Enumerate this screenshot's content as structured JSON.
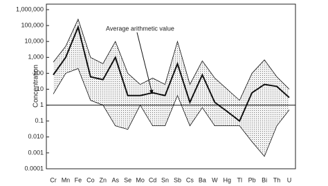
{
  "chart_data": {
    "type": "line",
    "ylabel": "Concentration",
    "annotation": "Average arithmetic value",
    "categories": [
      "Cr",
      "Mn",
      "Fe",
      "Co",
      "Zn",
      "As",
      "Se",
      "Mo",
      "Cd",
      "Sn",
      "Sb",
      "Cs",
      "Ba",
      "W",
      "Hg",
      "Tl",
      "Pb",
      "Bi",
      "Th",
      "U"
    ],
    "values": [
      80,
      1000,
      80000,
      60,
      40,
      1000,
      4,
      4,
      6,
      4,
      400,
      1.5,
      80,
      1.5,
      0.4,
      0.1,
      6,
      20,
      15,
      3
    ],
    "band": {
      "upper": [
        500,
        5000,
        250000,
        1000,
        400,
        10000,
        100,
        20,
        50,
        20,
        10000,
        20,
        600,
        50,
        10,
        2,
        100,
        700,
        60,
        10
      ],
      "lower": [
        5,
        100,
        200,
        2,
        1,
        0.05,
        0.03,
        1,
        0.05,
        0.05,
        4,
        0.05,
        0.7,
        0.05,
        0.05,
        0.05,
        0.005,
        0.0006,
        0.05,
        0.5
      ]
    },
    "reference_line": 1,
    "log_scale": true,
    "ylim": [
      0.0001,
      1000000
    ],
    "yticks": [
      {
        "value": 0.0001,
        "label": "0.0001"
      },
      0.001,
      {
        "value": 0.01,
        "label": "0.010"
      },
      0.1,
      1,
      10,
      100,
      {
        "value": 1000,
        "label": "1,000"
      },
      {
        "value": 10000,
        "label": "10,000"
      },
      {
        "value": 100000,
        "label": "100,000"
      },
      {
        "value": 1000000,
        "label": "1,000,000"
      }
    ]
  }
}
